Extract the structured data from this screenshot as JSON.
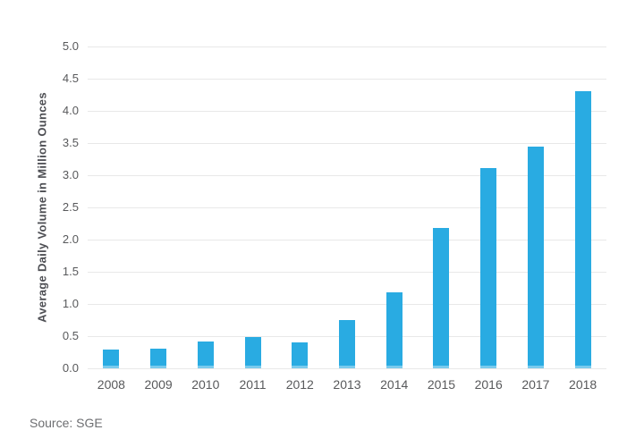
{
  "chart_data": {
    "type": "bar",
    "title": "",
    "ylabel": "Average Daily Volume in Million Ounces",
    "xlabel": "",
    "source": "Source: SGE",
    "categories": [
      "2008",
      "2009",
      "2010",
      "2011",
      "2012",
      "2013",
      "2014",
      "2015",
      "2016",
      "2017",
      "2018"
    ],
    "values": [
      0.29,
      0.3,
      0.41,
      0.48,
      0.4,
      0.75,
      1.18,
      2.18,
      3.11,
      3.45,
      4.3
    ],
    "ylim": [
      0,
      5
    ],
    "ytick_labels": [
      "0.0",
      "0.5",
      "1.0",
      "1.5",
      "2.0",
      "2.5",
      "3.0",
      "3.5",
      "4.0",
      "4.5",
      "5.0"
    ],
    "grid": true,
    "legend": false,
    "colors": {
      "bar": "#29ABE2",
      "gridline": "#E8E8E8",
      "tick_text": "#58595B",
      "axis_title_text": "#4D4E53",
      "source_text": "#6D6E71",
      "background": "#FFFFFF"
    }
  }
}
